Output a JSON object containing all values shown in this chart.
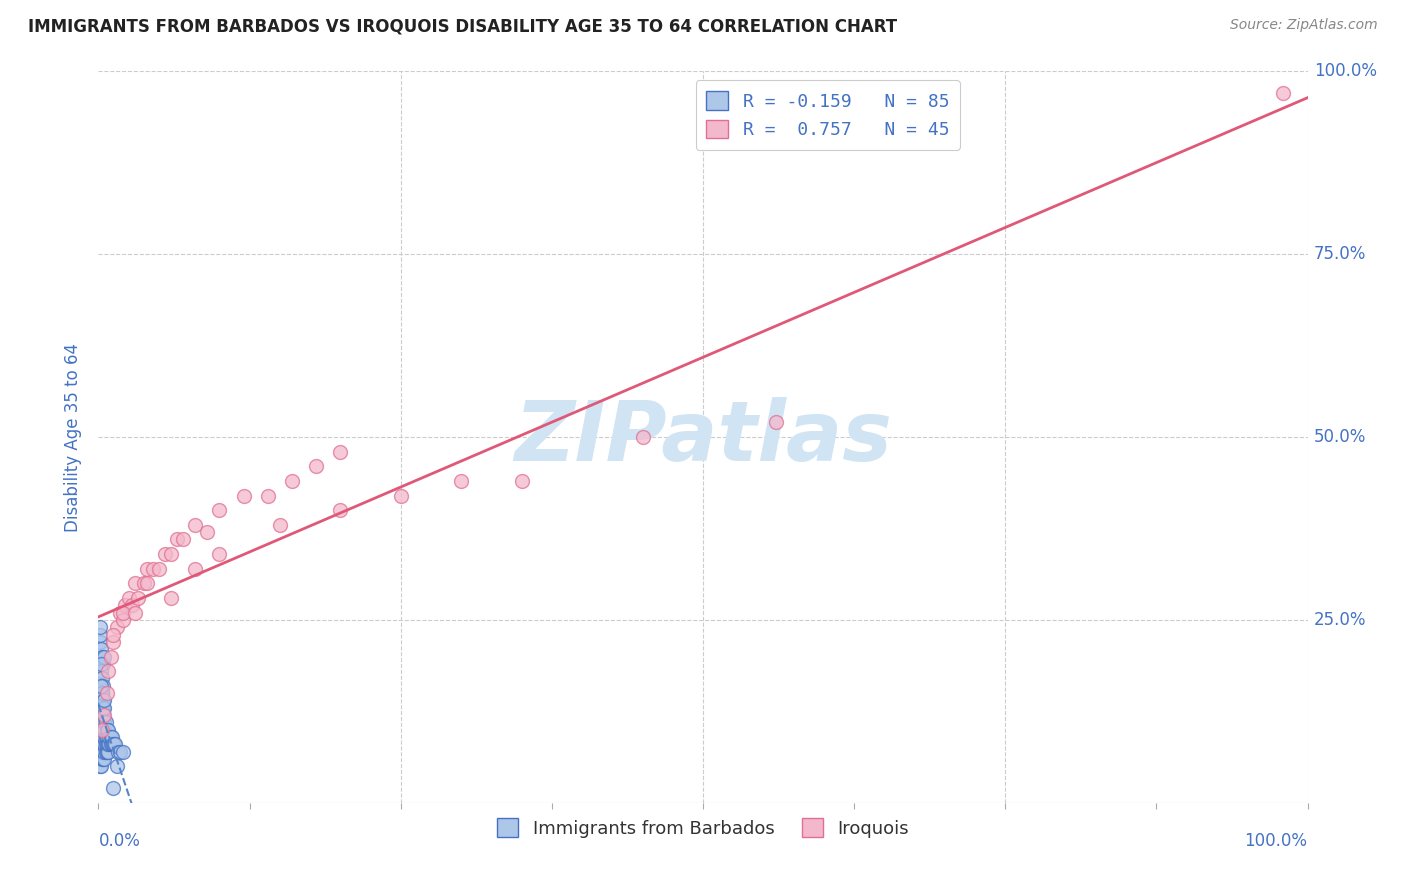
{
  "title": "IMMIGRANTS FROM BARBADOS VS IROQUOIS DISABILITY AGE 35 TO 64 CORRELATION CHART",
  "source": "Source: ZipAtlas.com",
  "ylabel": "Disability Age 35 to 64",
  "legend_blue_label": "Immigrants from Barbados",
  "legend_pink_label": "Iroquois",
  "blue_R": -0.159,
  "blue_N": 85,
  "pink_R": 0.757,
  "pink_N": 45,
  "blue_color": "#aec6e8",
  "blue_edge_color": "#4472c4",
  "pink_color": "#f4b8cc",
  "pink_edge_color": "#e07090",
  "trend_blue_color": "#5585c8",
  "trend_pink_color": "#e05878",
  "watermark_color": "#d0e4f4",
  "background_color": "#ffffff",
  "grid_color": "#cccccc",
  "title_color": "#222222",
  "axis_label_color": "#4472c4",
  "blue_points_x": [
    0.001,
    0.001,
    0.001,
    0.001,
    0.001,
    0.001,
    0.001,
    0.001,
    0.001,
    0.001,
    0.002,
    0.002,
    0.002,
    0.002,
    0.002,
    0.002,
    0.002,
    0.002,
    0.002,
    0.002,
    0.003,
    0.003,
    0.003,
    0.003,
    0.003,
    0.003,
    0.003,
    0.003,
    0.003,
    0.003,
    0.004,
    0.004,
    0.004,
    0.004,
    0.004,
    0.004,
    0.004,
    0.004,
    0.004,
    0.005,
    0.005,
    0.005,
    0.005,
    0.005,
    0.005,
    0.005,
    0.006,
    0.006,
    0.006,
    0.006,
    0.007,
    0.007,
    0.007,
    0.007,
    0.008,
    0.008,
    0.008,
    0.009,
    0.009,
    0.01,
    0.01,
    0.011,
    0.011,
    0.012,
    0.013,
    0.014,
    0.015,
    0.016,
    0.018,
    0.02,
    0.001,
    0.002,
    0.003,
    0.004,
    0.005,
    0.002,
    0.003,
    0.001,
    0.004,
    0.002,
    0.003,
    0.001,
    0.002,
    0.005,
    0.012
  ],
  "blue_points_y": [
    0.05,
    0.07,
    0.08,
    0.09,
    0.1,
    0.11,
    0.12,
    0.13,
    0.14,
    0.16,
    0.05,
    0.07,
    0.08,
    0.09,
    0.1,
    0.11,
    0.12,
    0.13,
    0.14,
    0.15,
    0.06,
    0.07,
    0.08,
    0.09,
    0.1,
    0.11,
    0.12,
    0.13,
    0.14,
    0.15,
    0.06,
    0.07,
    0.08,
    0.09,
    0.1,
    0.11,
    0.12,
    0.13,
    0.14,
    0.06,
    0.07,
    0.08,
    0.09,
    0.1,
    0.11,
    0.13,
    0.07,
    0.08,
    0.09,
    0.11,
    0.07,
    0.08,
    0.09,
    0.1,
    0.07,
    0.08,
    0.1,
    0.08,
    0.09,
    0.08,
    0.09,
    0.08,
    0.09,
    0.08,
    0.08,
    0.08,
    0.05,
    0.07,
    0.07,
    0.07,
    0.22,
    0.21,
    0.2,
    0.19,
    0.2,
    0.18,
    0.17,
    0.23,
    0.16,
    0.19,
    0.15,
    0.24,
    0.16,
    0.14,
    0.02
  ],
  "pink_points_x": [
    0.003,
    0.005,
    0.007,
    0.008,
    0.01,
    0.012,
    0.015,
    0.018,
    0.02,
    0.022,
    0.025,
    0.028,
    0.03,
    0.033,
    0.038,
    0.04,
    0.045,
    0.05,
    0.055,
    0.06,
    0.065,
    0.07,
    0.08,
    0.09,
    0.1,
    0.12,
    0.14,
    0.16,
    0.18,
    0.2,
    0.012,
    0.02,
    0.03,
    0.04,
    0.06,
    0.08,
    0.1,
    0.15,
    0.2,
    0.25,
    0.3,
    0.35,
    0.45,
    0.56,
    0.98
  ],
  "pink_points_y": [
    0.1,
    0.12,
    0.15,
    0.18,
    0.2,
    0.22,
    0.24,
    0.26,
    0.25,
    0.27,
    0.28,
    0.27,
    0.3,
    0.28,
    0.3,
    0.32,
    0.32,
    0.32,
    0.34,
    0.34,
    0.36,
    0.36,
    0.38,
    0.37,
    0.4,
    0.42,
    0.42,
    0.44,
    0.46,
    0.48,
    0.23,
    0.26,
    0.26,
    0.3,
    0.28,
    0.32,
    0.34,
    0.38,
    0.4,
    0.42,
    0.44,
    0.44,
    0.5,
    0.52,
    0.97
  ],
  "xlim": [
    0.0,
    1.0
  ],
  "ylim": [
    0.0,
    1.0
  ],
  "marker_size": 100
}
